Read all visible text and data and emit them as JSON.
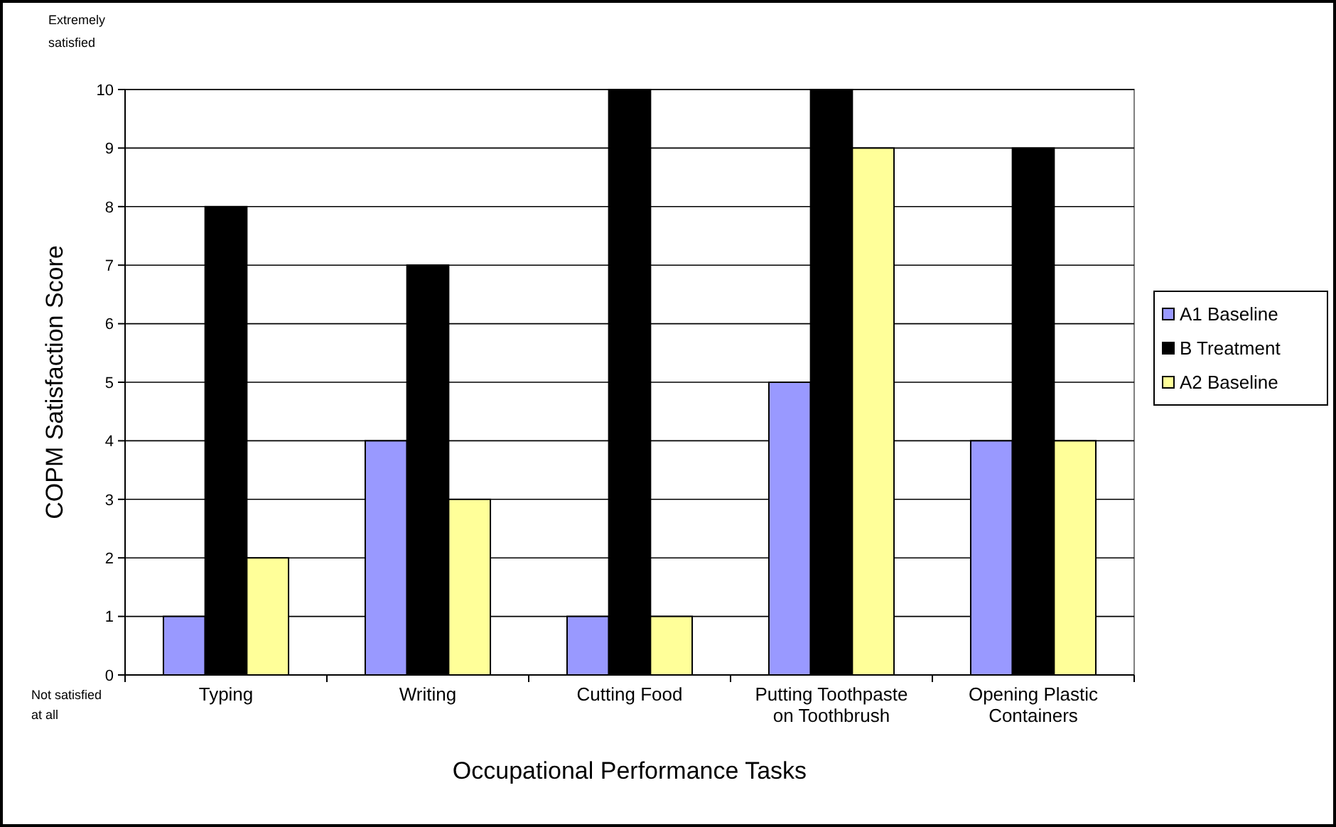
{
  "chart_data": {
    "type": "bar",
    "xlabel": "Occupational Performance Tasks",
    "ylabel": "COPM Satisfaction Score",
    "categories": [
      "Typing",
      "Writing",
      "Cutting Food",
      "Putting Toothpaste on Toothbrush",
      "Opening Plastic Containers"
    ],
    "series": [
      {
        "name": "A1 Baseline",
        "color": "#9999ff",
        "values": [
          1,
          4,
          1,
          5,
          4
        ]
      },
      {
        "name": "B Treatment",
        "color": "#000000",
        "values": [
          8,
          7,
          10,
          10,
          9
        ]
      },
      {
        "name": "A2 Baseline",
        "color": "#ffff99",
        "values": [
          2,
          3,
          1,
          9,
          4
        ]
      }
    ],
    "ylim": [
      0,
      10
    ],
    "yticks": [
      0,
      1,
      2,
      3,
      4,
      5,
      6,
      7,
      8,
      9,
      10
    ],
    "grid": "y",
    "legend": "right",
    "annotations": [
      "Extremely satisfied",
      "Not satisfied at all"
    ]
  }
}
